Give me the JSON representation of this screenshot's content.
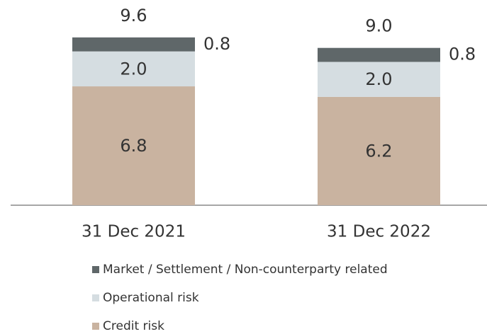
{
  "chart_data": {
    "type": "stacked-bar",
    "categories": [
      "31 Dec 2021",
      "31 Dec 2022"
    ],
    "series": [
      {
        "name": "Market / Settlement / Non-counterparty related",
        "color": "#5f6769",
        "values": [
          0.8,
          0.8
        ],
        "value_labels": [
          "0.8",
          "0.8"
        ]
      },
      {
        "name": "Operational risk",
        "color": "#d5dde1",
        "values": [
          2,
          2
        ],
        "value_labels": [
          "2.0",
          "2.0"
        ]
      },
      {
        "name": "Credit risk",
        "color": "#c9b3a0",
        "values": [
          6.8,
          6.2
        ],
        "value_labels": [
          "6.8",
          "6.2"
        ]
      }
    ],
    "totals": [
      9.6,
      9
    ],
    "total_labels": [
      "9.6",
      "9.0"
    ]
  }
}
